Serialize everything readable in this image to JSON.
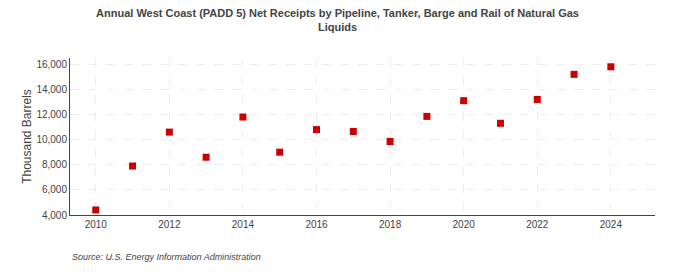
{
  "chart_data": {
    "type": "scatter",
    "title": "Annual West Coast (PADD 5) Net Receipts by Pipeline, Tanker, Barge and Rail of Natural Gas\nLiquids",
    "ylabel": "Thousand Barrels",
    "source": "Source: U.S. Energy Information Administration",
    "x": [
      2010,
      2011,
      2012,
      2013,
      2014,
      2015,
      2016,
      2017,
      2018,
      2019,
      2020,
      2021,
      2022,
      2023,
      2024
    ],
    "values": [
      4400,
      7900,
      10600,
      8600,
      11800,
      9000,
      10800,
      10650,
      9850,
      11850,
      13100,
      11300,
      13200,
      15200,
      15800
    ],
    "color": "#cc0000",
    "marker": "square",
    "xlim": [
      2009.3,
      2025.2
    ],
    "xticks": [
      2010,
      2012,
      2014,
      2016,
      2018,
      2020,
      2022,
      2024
    ],
    "ylim": [
      4000,
      16500
    ],
    "yticks": [
      {
        "value": 4000,
        "label": "4,000"
      },
      {
        "value": 6000,
        "label": "6,000"
      },
      {
        "value": 8000,
        "label": "8,000"
      },
      {
        "value": 10000,
        "label": "10,000"
      },
      {
        "value": 12000,
        "label": "12,000"
      },
      {
        "value": 14000,
        "label": "14,000"
      },
      {
        "value": 16000,
        "label": "16,000"
      }
    ],
    "grid": true
  }
}
